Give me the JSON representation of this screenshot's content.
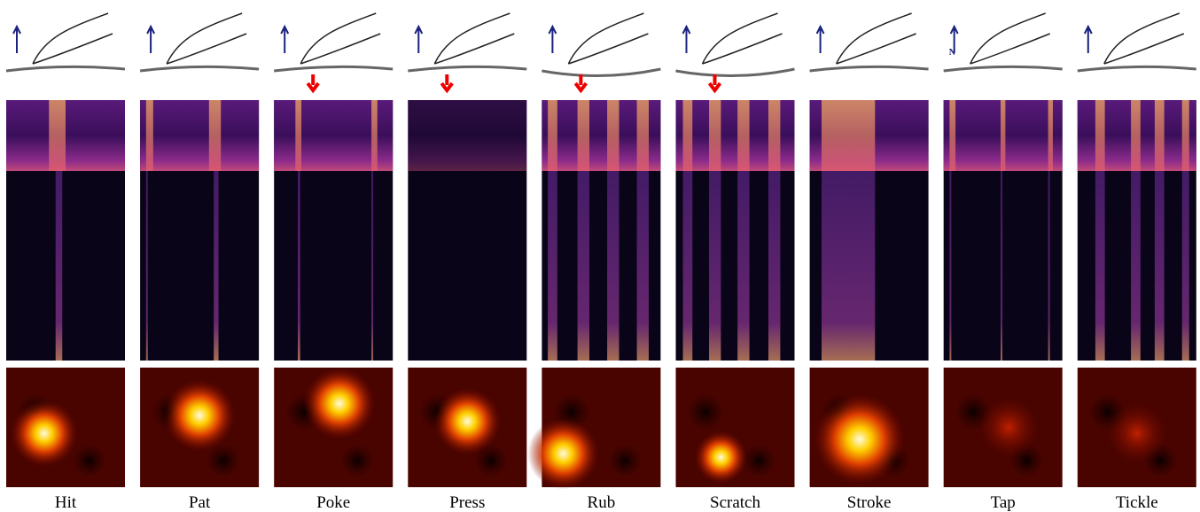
{
  "panels": [
    {
      "label": "Hit"
    },
    {
      "label": "Pat"
    },
    {
      "label": "Poke"
    },
    {
      "label": "Press"
    },
    {
      "label": "Rub"
    },
    {
      "label": "Scratch"
    },
    {
      "label": "Stroke"
    },
    {
      "label": "Tap",
      "icon_text": "N"
    },
    {
      "label": "Tickle"
    }
  ]
}
